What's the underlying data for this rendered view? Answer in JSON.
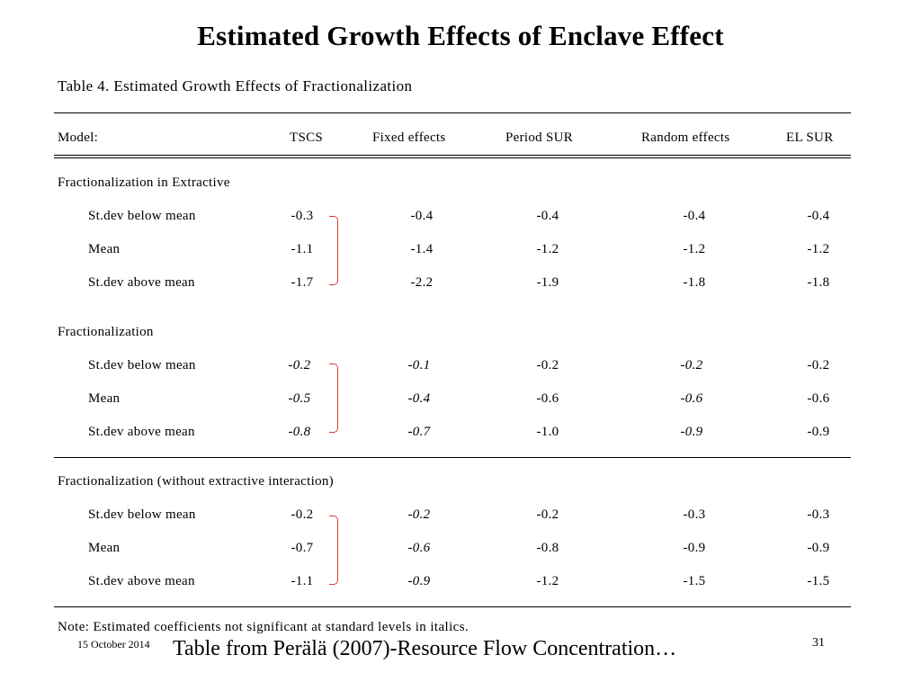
{
  "slide": {
    "title": "Estimated Growth Effects of Enclave Effect",
    "footer_date": "15 October 2014",
    "footer_source": "Table from Perälä (2007)-Resource Flow Concentration…",
    "page_number": "31",
    "bracket_color": "#d93a3a"
  },
  "table": {
    "caption": "Table 4. Estimated Growth Effects of Fractionalization",
    "model_label": "Model:",
    "columns": [
      "TSCS",
      "Fixed effects",
      "Period SUR",
      "Random effects",
      "EL SUR"
    ],
    "sections": [
      {
        "title": "Fractionalization in Extractive",
        "rows": [
          {
            "label": "St.dev below mean",
            "values": [
              "-0.3",
              "-0.4",
              "-0.4",
              "-0.4",
              "-0.4"
            ],
            "italic": [
              false,
              false,
              false,
              false,
              false
            ]
          },
          {
            "label": "Mean",
            "values": [
              "-1.1",
              "-1.4",
              "-1.2",
              "-1.2",
              "-1.2"
            ],
            "italic": [
              false,
              false,
              false,
              false,
              false
            ]
          },
          {
            "label": "St.dev above mean",
            "values": [
              "-1.7",
              "-2.2",
              "-1.9",
              "-1.8",
              "-1.8"
            ],
            "italic": [
              false,
              false,
              false,
              false,
              false
            ]
          }
        ]
      },
      {
        "title": "Fractionalization",
        "rows": [
          {
            "label": "St.dev below mean",
            "values": [
              "-0.2",
              "-0.1",
              "-0.2",
              "-0.2",
              "-0.2"
            ],
            "italic": [
              true,
              true,
              false,
              true,
              false
            ]
          },
          {
            "label": "Mean",
            "values": [
              "-0.5",
              "-0.4",
              "-0.6",
              "-0.6",
              "-0.6"
            ],
            "italic": [
              true,
              true,
              false,
              true,
              false
            ]
          },
          {
            "label": "St.dev above mean",
            "values": [
              "-0.8",
              "-0.7",
              "-1.0",
              "-0.9",
              "-0.9"
            ],
            "italic": [
              true,
              true,
              false,
              true,
              false
            ]
          }
        ]
      },
      {
        "title": "Fractionalization (without extractive interaction)",
        "rows": [
          {
            "label": "St.dev below mean",
            "values": [
              "-0.2",
              "-0.2",
              "-0.2",
              "-0.3",
              "-0.3"
            ],
            "italic": [
              false,
              true,
              false,
              false,
              false
            ]
          },
          {
            "label": "Mean",
            "values": [
              "-0.7",
              "-0.6",
              "-0.8",
              "-0.9",
              "-0.9"
            ],
            "italic": [
              false,
              true,
              false,
              false,
              false
            ]
          },
          {
            "label": "St.dev above mean",
            "values": [
              "-1.1",
              "-0.9",
              "-1.2",
              "-1.5",
              "-1.5"
            ],
            "italic": [
              false,
              true,
              false,
              false,
              false
            ]
          }
        ]
      }
    ],
    "note": "Note: Estimated coefficients not significant at standard levels in italics."
  }
}
